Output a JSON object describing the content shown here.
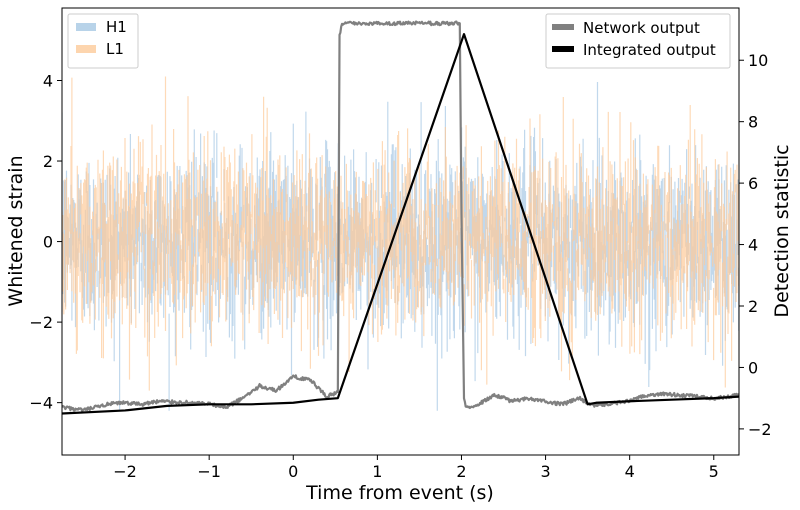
{
  "chart_data": {
    "type": "line",
    "title": "",
    "xlabel": "Time from event (s)",
    "ylabel_left": "Whitened strain",
    "ylabel_right": "Detection statistic",
    "xlim": [
      -2.75,
      5.3
    ],
    "ylim_left": [
      -5.3,
      5.8
    ],
    "ylim_right": [
      -2.85,
      11.7
    ],
    "xticks": [
      -2,
      -1,
      0,
      1,
      2,
      3,
      4,
      5
    ],
    "xtick_labels": [
      "−2",
      "−1",
      "0",
      "1",
      "2",
      "3",
      "4",
      "5"
    ],
    "yticks_left": [
      -4,
      -2,
      0,
      2,
      4
    ],
    "ytick_labels_left": [
      "−4",
      "−2",
      "0",
      "2",
      "4"
    ],
    "yticks_right": [
      -2,
      0,
      2,
      4,
      6,
      8,
      10
    ],
    "ytick_labels_right": [
      "−2",
      "0",
      "2",
      "4",
      "6",
      "8",
      "10"
    ],
    "grid": false,
    "legend_left": {
      "placement": "top-left",
      "entries": [
        "H1",
        "L1"
      ]
    },
    "legend_right": {
      "placement": "top-right",
      "entries": [
        "Network output",
        "Integrated output"
      ]
    },
    "strain_series": [
      {
        "name": "H1",
        "axis": "left",
        "color": "#a6c8e4",
        "opacity": 0.7,
        "typical_range": [
          -2.2,
          2.2
        ],
        "extreme_range": [
          -4.2,
          4.0
        ]
      },
      {
        "name": "L1",
        "axis": "left",
        "color": "#fdca9a",
        "opacity": 0.7,
        "typical_range": [
          -2.2,
          2.2
        ],
        "extreme_range": [
          -4.2,
          4.1
        ]
      }
    ],
    "series": [
      {
        "name": "Network output",
        "axis": "right",
        "color": "#808080",
        "x": [
          -2.75,
          -2.5,
          -2.2,
          -2.0,
          -1.8,
          -1.6,
          -1.2,
          -1.0,
          -0.8,
          -0.6,
          -0.4,
          -0.2,
          0.0,
          0.2,
          0.4,
          0.53,
          0.55,
          0.58,
          1.0,
          1.5,
          1.9,
          1.98,
          2.0,
          2.03,
          2.05,
          2.2,
          2.4,
          2.6,
          2.8,
          3.0,
          3.2,
          3.4,
          3.55,
          3.7,
          4.0,
          4.2,
          4.4,
          4.6,
          5.0,
          5.3
        ],
        "y": [
          -1.3,
          -1.4,
          -1.2,
          -1.15,
          -1.2,
          -1.1,
          -1.15,
          -1.2,
          -1.3,
          -1.0,
          -0.6,
          -0.75,
          -0.3,
          -0.4,
          -0.95,
          -0.8,
          10.8,
          11.2,
          11.2,
          11.2,
          11.2,
          11.2,
          5.0,
          -1.0,
          -1.3,
          -1.2,
          -0.9,
          -1.1,
          -1.0,
          -1.1,
          -1.2,
          -1.0,
          -1.25,
          -1.2,
          -1.1,
          -0.9,
          -0.85,
          -0.9,
          -1.0,
          -0.9
        ]
      },
      {
        "name": "Integrated output",
        "axis": "right",
        "color": "#000000",
        "x": [
          -2.75,
          -2.0,
          -1.5,
          -1.0,
          -0.5,
          0.0,
          0.3,
          0.53,
          2.03,
          3.5,
          3.6,
          4.0,
          4.5,
          5.0,
          5.3
        ],
        "y": [
          -1.5,
          -1.4,
          -1.25,
          -1.2,
          -1.2,
          -1.15,
          -1.05,
          -1.0,
          10.85,
          -1.2,
          -1.15,
          -1.1,
          -1.05,
          -1.0,
          -0.95
        ]
      }
    ]
  }
}
